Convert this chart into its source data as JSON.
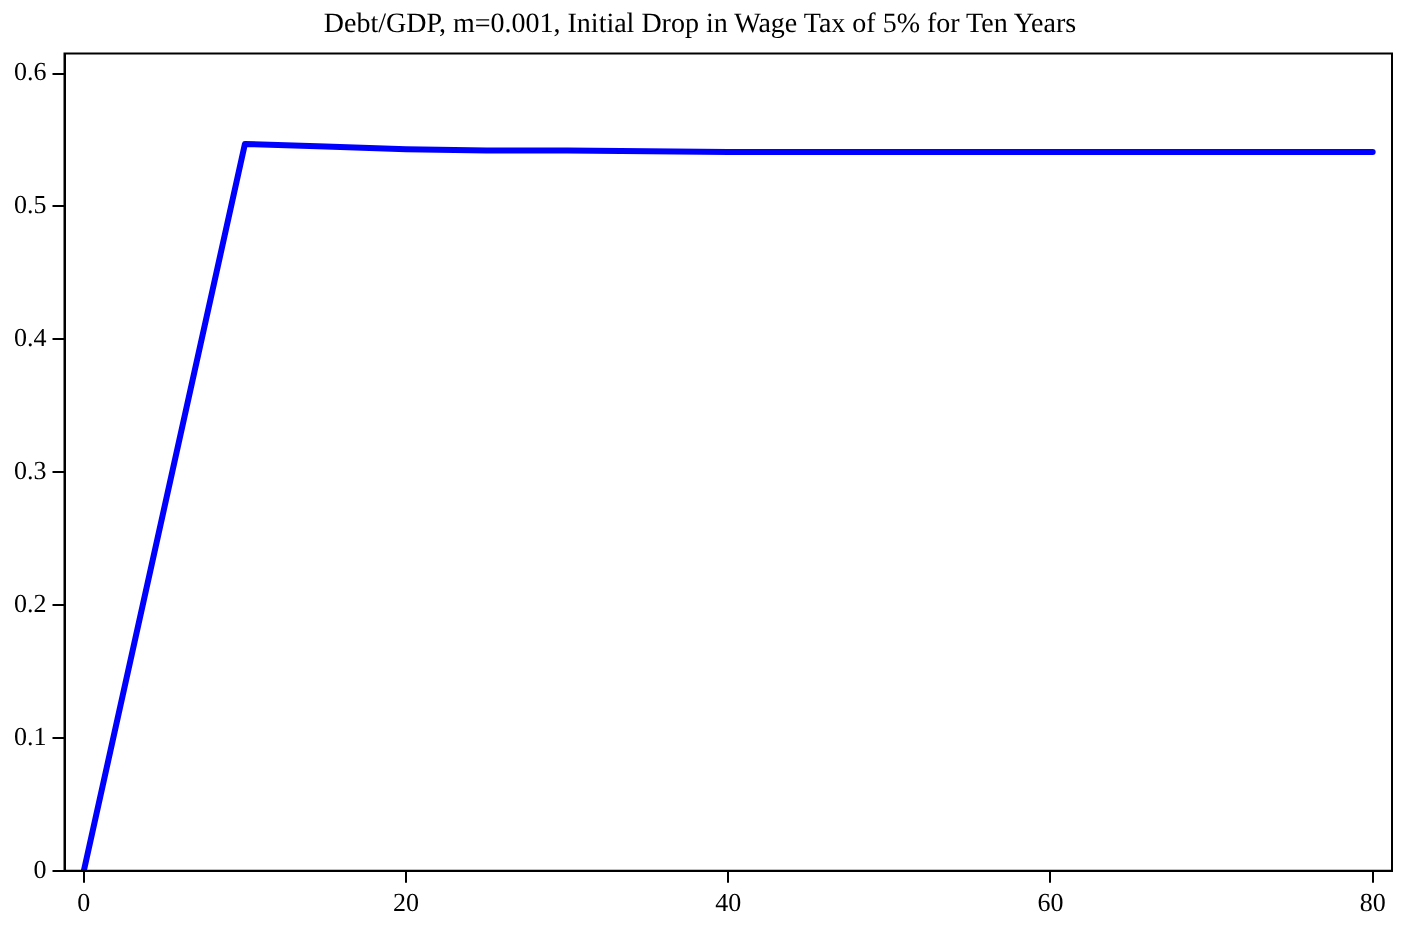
{
  "chart_data": {
    "type": "line",
    "title": "Debt/GDP, m=0.001, Initial Drop in Wage Tax of 5% for Ten Years",
    "x": [
      0,
      10,
      15,
      20,
      25,
      30,
      40,
      60,
      80
    ],
    "series": [
      {
        "color": "#0000ff",
        "values": [
          0,
          0.547,
          0.545,
          0.543,
          0.542,
          0.542,
          0.541,
          0.541,
          0.541
        ]
      }
    ],
    "xlim": [
      -1.2,
      81.2
    ],
    "xticks": [
      0,
      20,
      40,
      60,
      80
    ],
    "ylim": [
      0,
      0.615
    ],
    "yticks": [
      0,
      0.1,
      0.2,
      0.3,
      0.4,
      0.5,
      0.6
    ],
    "grid": false,
    "legend": false,
    "marker": "none",
    "line_style": "solid"
  }
}
